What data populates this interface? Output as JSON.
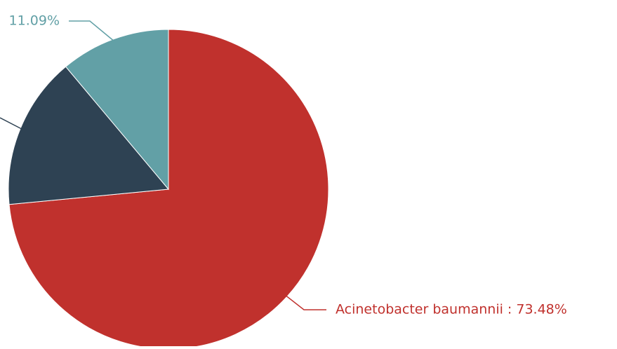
{
  "chart_data": {
    "type": "pie",
    "title": "",
    "series": [
      {
        "slices": [
          {
            "name": "Acinetobacter  baumannii",
            "value": 73.48,
            "label": "Acinetobacter  baumannii : 73.48%",
            "color": "#c0312d"
          },
          {
            "name": "",
            "value": 15.43,
            "label": "",
            "color": "#2e4253"
          },
          {
            "name": "",
            "value": 11.09,
            "label": "11.09%",
            "color": "#62a0a6"
          }
        ]
      }
    ],
    "start_angle_deg": 90,
    "direction": "clockwise",
    "legend": "none",
    "label_style": "outside-with-leader-lines"
  }
}
